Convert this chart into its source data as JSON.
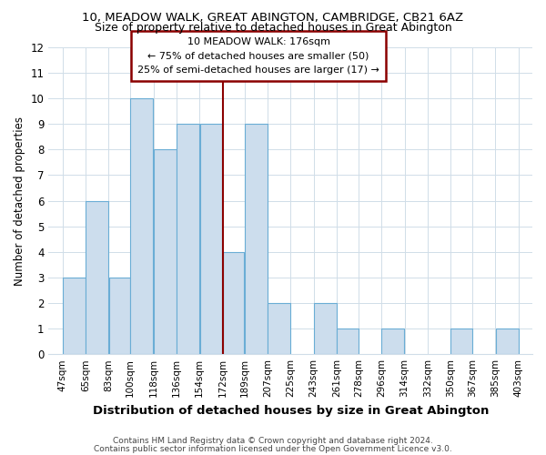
{
  "title1": "10, MEADOW WALK, GREAT ABINGTON, CAMBRIDGE, CB21 6AZ",
  "title2": "Size of property relative to detached houses in Great Abington",
  "xlabel": "Distribution of detached houses by size in Great Abington",
  "ylabel": "Number of detached properties",
  "bin_edges": [
    47,
    65,
    83,
    100,
    118,
    136,
    154,
    172,
    189,
    207,
    225,
    243,
    261,
    278,
    296,
    314,
    332,
    350,
    367,
    385,
    403
  ],
  "bar_heights": [
    3,
    6,
    3,
    10,
    8,
    9,
    9,
    4,
    9,
    2,
    0,
    2,
    1,
    0,
    1,
    0,
    0,
    1,
    0,
    1
  ],
  "bar_color": "#ccdded",
  "bar_edgecolor": "#6aadd5",
  "ref_line_x": 172,
  "ref_line_color": "#8b0000",
  "ylim": [
    0,
    12
  ],
  "yticks": [
    0,
    1,
    2,
    3,
    4,
    5,
    6,
    7,
    8,
    9,
    10,
    11,
    12
  ],
  "annotation_title": "10 MEADOW WALK: 176sqm",
  "annotation_line1": "← 75% of detached houses are smaller (50)",
  "annotation_line2": "25% of semi-detached houses are larger (17) →",
  "annotation_box_color": "#ffffff",
  "annotation_box_edgecolor": "#8b0000",
  "footer1": "Contains HM Land Registry data © Crown copyright and database right 2024.",
  "footer2": "Contains public sector information licensed under the Open Government Licence v3.0.",
  "background_color": "#ffffff",
  "grid_color": "#d0dde8"
}
